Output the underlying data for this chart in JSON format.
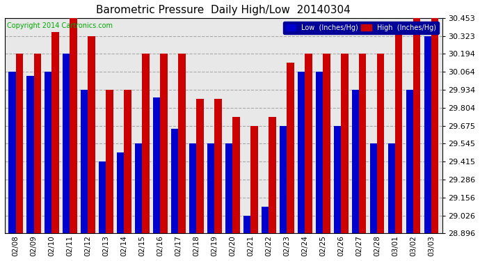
{
  "title": "Barometric Pressure  Daily High/Low  20140304",
  "copyright": "Copyright 2014 Cartronics.com",
  "legend_low": "Low  (Inches/Hg)",
  "legend_high": "High  (Inches/Hg)",
  "categories": [
    "02/08",
    "02/09",
    "02/10",
    "02/11",
    "02/12",
    "02/13",
    "02/14",
    "02/15",
    "02/16",
    "02/17",
    "02/18",
    "02/19",
    "02/20",
    "02/21",
    "02/22",
    "02/23",
    "02/24",
    "02/25",
    "02/26",
    "02/27",
    "02/28",
    "03/01",
    "03/02",
    "03/03"
  ],
  "low_values": [
    30.064,
    30.034,
    30.064,
    30.194,
    29.934,
    29.415,
    29.48,
    29.545,
    29.88,
    29.655,
    29.545,
    29.545,
    29.545,
    29.026,
    29.09,
    29.675,
    30.064,
    30.064,
    29.675,
    29.934,
    29.545,
    29.545,
    29.934,
    30.323
  ],
  "high_values": [
    30.194,
    30.194,
    30.353,
    30.453,
    30.323,
    29.934,
    29.934,
    30.194,
    30.194,
    30.194,
    29.87,
    29.87,
    29.74,
    29.675,
    29.74,
    30.13,
    30.194,
    30.194,
    30.194,
    30.194,
    30.194,
    30.353,
    30.453,
    30.453
  ],
  "ylim_min": 28.896,
  "ylim_max": 30.453,
  "yticks": [
    28.896,
    29.026,
    29.156,
    29.286,
    29.415,
    29.545,
    29.675,
    29.804,
    29.934,
    30.064,
    30.194,
    30.323,
    30.453
  ],
  "bg_color": "#ffffff",
  "plot_bg_color": "#e8e8e8",
  "low_color": "#0000cc",
  "high_color": "#cc0000",
  "grid_color": "#aaaaaa",
  "bar_width": 0.4
}
